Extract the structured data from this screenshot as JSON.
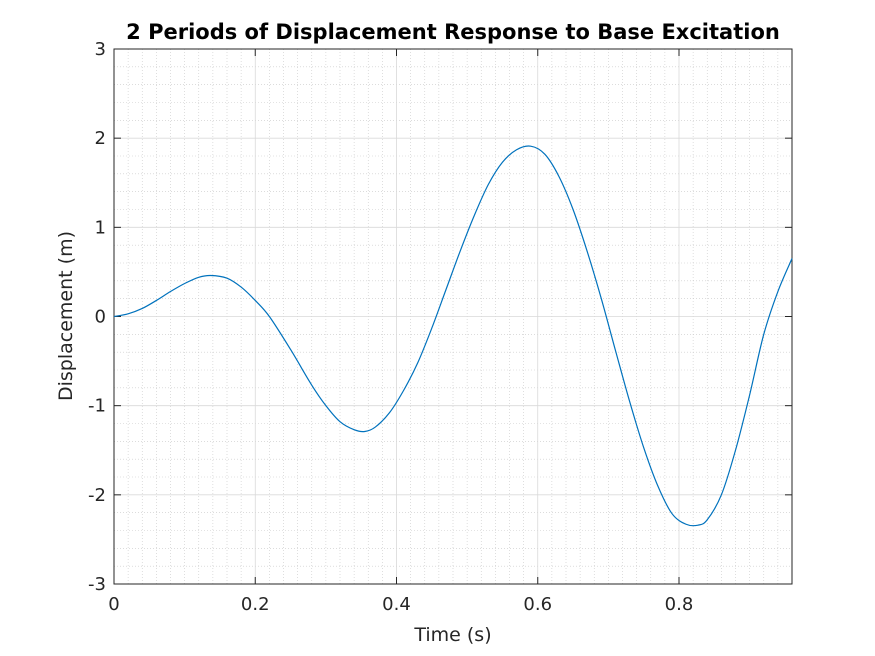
{
  "chart_data": {
    "type": "line",
    "title": "2 Periods of Displacement Response to Base Excitation",
    "xlabel": "Time (s)",
    "ylabel": "Displacement (m)",
    "xlim": [
      0,
      0.96
    ],
    "ylim": [
      -3,
      3
    ],
    "x_ticks": [
      0,
      0.2,
      0.4,
      0.6,
      0.8
    ],
    "x_tick_labels": [
      "0",
      "0.2",
      "0.4",
      "0.6",
      "0.8"
    ],
    "y_ticks": [
      -3,
      -2,
      -1,
      0,
      1,
      2,
      3
    ],
    "y_tick_labels": [
      "-3",
      "-2",
      "-1",
      "0",
      "1",
      "2",
      "3"
    ],
    "grid": "major and minor",
    "line_color": "#0072bd",
    "series": [
      {
        "x": [
          0,
          0.02,
          0.04,
          0.06,
          0.08,
          0.1,
          0.12,
          0.137,
          0.16,
          0.18,
          0.2,
          0.22,
          0.25,
          0.28,
          0.3,
          0.32,
          0.34,
          0.355,
          0.37,
          0.39,
          0.41,
          0.43,
          0.45,
          0.47,
          0.49,
          0.51,
          0.53,
          0.55,
          0.57,
          0.59,
          0.61,
          0.63,
          0.65,
          0.67,
          0.69,
          0.71,
          0.73,
          0.75,
          0.77,
          0.79,
          0.81,
          0.827,
          0.84,
          0.86,
          0.88,
          0.9,
          0.92,
          0.94,
          0.96
        ],
        "y": [
          0,
          0.03,
          0.09,
          0.18,
          0.28,
          0.37,
          0.44,
          0.46,
          0.43,
          0.33,
          0.18,
          0.0,
          -0.37,
          -0.77,
          -1.0,
          -1.18,
          -1.27,
          -1.29,
          -1.24,
          -1.08,
          -0.83,
          -0.52,
          -0.13,
          0.3,
          0.73,
          1.13,
          1.48,
          1.73,
          1.87,
          1.91,
          1.82,
          1.57,
          1.2,
          0.73,
          0.2,
          -0.38,
          -0.95,
          -1.47,
          -1.9,
          -2.21,
          -2.33,
          -2.34,
          -2.28,
          -2.0,
          -1.5,
          -0.88,
          -0.2,
          0.28,
          0.65
        ]
      }
    ]
  }
}
